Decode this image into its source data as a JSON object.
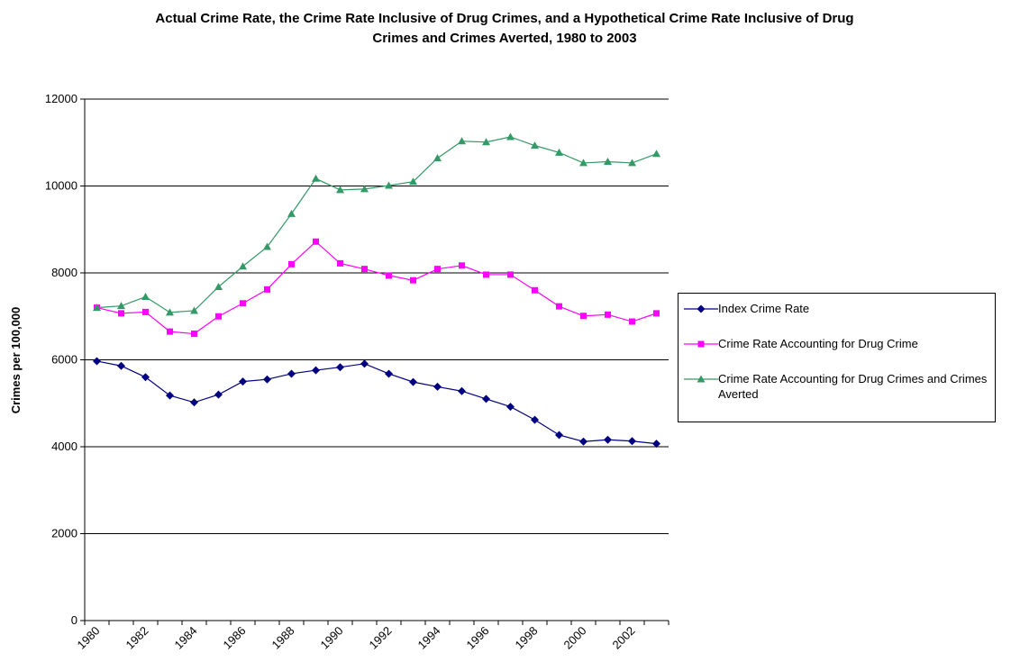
{
  "chart_data": {
    "type": "line",
    "title": "Actual Crime Rate, the Crime Rate Inclusive of Drug Crimes, and a Hypothetical Crime Rate Inclusive of Drug Crimes and Crimes Averted, 1980 to 2003",
    "y_label": "Crimes per 100,000",
    "categories": [
      "1980",
      null,
      "1982",
      null,
      "1984",
      null,
      "1986",
      null,
      "1988",
      null,
      "1990",
      null,
      "1992",
      null,
      "1994",
      null,
      "1996",
      null,
      "1998",
      null,
      "2000",
      null,
      "2002",
      null
    ],
    "series": [
      {
        "name": "Index Crime Rate",
        "color": "#000080",
        "marker": "diamond",
        "values": [
          5970,
          5860,
          5600,
          5180,
          5020,
          5200,
          5500,
          5550,
          5680,
          5760,
          5830,
          5910,
          5680,
          5490,
          5380,
          5280,
          5100,
          4920,
          4620,
          4270,
          4120,
          4160,
          4130,
          4070
        ]
      },
      {
        "name": "Crime Rate Accounting for Drug Crime",
        "color": "#ff00ff",
        "marker": "square",
        "values": [
          7200,
          7070,
          7100,
          6650,
          6600,
          7000,
          7300,
          7620,
          8200,
          8720,
          8220,
          8090,
          7940,
          7830,
          8090,
          8170,
          7960,
          7960,
          7600,
          7230,
          7010,
          7040,
          6880,
          7070
        ]
      },
      {
        "name": "Crime Rate Accounting for Drug Crimes and Crimes Averted",
        "color": "#339966",
        "marker": "triangle",
        "values": [
          7200,
          7240,
          7450,
          7090,
          7130,
          7680,
          8150,
          8600,
          9360,
          10170,
          9910,
          9930,
          10010,
          10100,
          10640,
          11030,
          11010,
          11130,
          10930,
          10770,
          10530,
          10560,
          10530,
          10740
        ]
      }
    ],
    "ylim": [
      0,
      12000
    ],
    "yticks": [
      0,
      2000,
      4000,
      6000,
      8000,
      10000,
      12000
    ],
    "grid": true
  }
}
